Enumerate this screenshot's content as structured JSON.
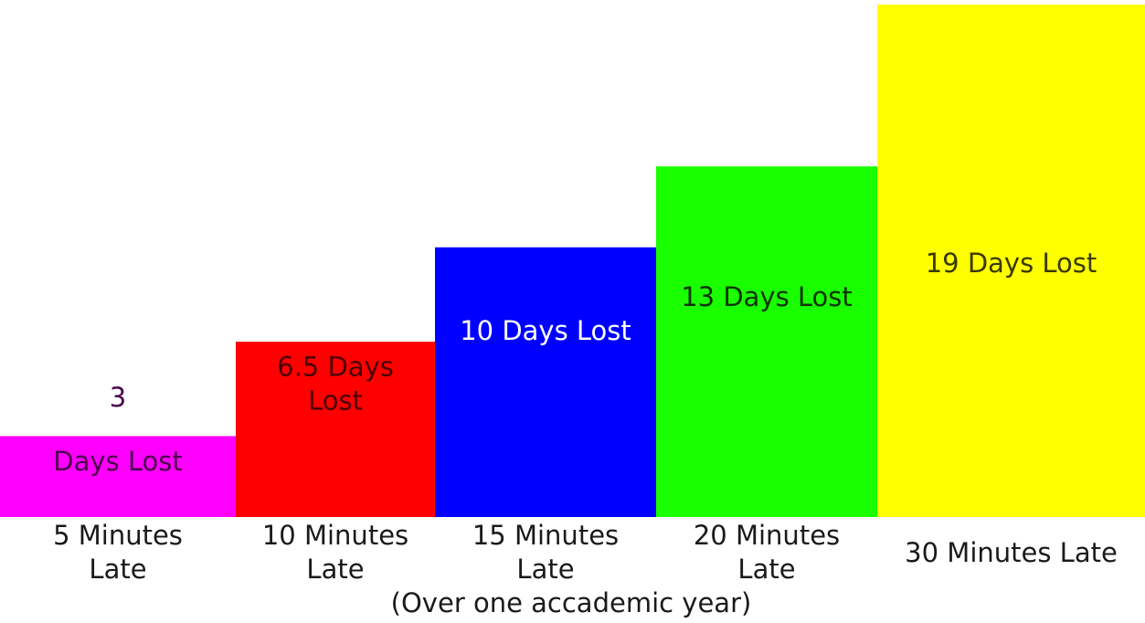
{
  "chart_data": {
    "type": "bar",
    "categories": [
      "5 Minutes Late",
      "10 Minutes Late",
      "15 Minutes Late",
      "20 Minutes Late",
      "30 Minutes Late"
    ],
    "values": [
      3,
      6.5,
      10,
      13,
      19
    ],
    "bar_labels": [
      "3 Days Lost",
      "6.5 Days Lost",
      "10 Days Lost",
      "13 Days Lost",
      "19 Days Lost"
    ],
    "colors": [
      "#ff00ff",
      "#ff0000",
      "#0000ff",
      "#1aff00",
      "#ffff00"
    ],
    "label_colors": [
      "#4a004a",
      "#4a0000",
      "#ffffff",
      "#0b3300",
      "#3a3a00"
    ],
    "title": "",
    "xlabel": "",
    "ylabel": "",
    "ylim": [
      0,
      19
    ],
    "grid": false,
    "note": "(Over one accademic year)"
  }
}
